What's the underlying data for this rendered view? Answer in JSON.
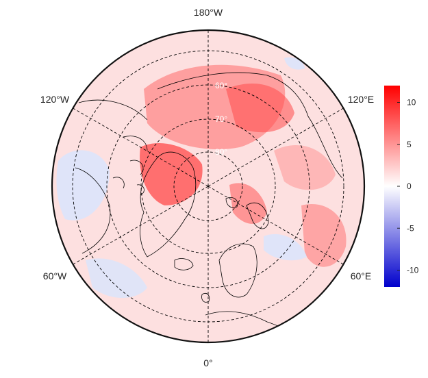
{
  "map": {
    "projection": "north-polar-stereographic",
    "longitude_labels": [
      {
        "key": "top",
        "text": "180°W"
      },
      {
        "key": "upper-left",
        "text": "120°W"
      },
      {
        "key": "upper-right",
        "text": "120°E"
      },
      {
        "key": "lower-left",
        "text": "60°W"
      },
      {
        "key": "lower-right",
        "text": "60°E"
      },
      {
        "key": "bottom",
        "text": "0°"
      }
    ],
    "latitude_labels": [
      {
        "key": "lat60",
        "text": "60°"
      },
      {
        "key": "lat70",
        "text": "70°"
      },
      {
        "key": "lat80",
        "text": "80°"
      }
    ],
    "colorbar": {
      "min": -12,
      "max": 12,
      "ticks": [
        "10",
        "5",
        "0",
        "-5",
        "-10"
      ],
      "tick_values": [
        10,
        5,
        0,
        -5,
        -10
      ],
      "low_color": "#0000cc",
      "mid_color": "#ffffff",
      "high_color": "#ff0000"
    },
    "colors": {
      "background_fill": "#fde0e0",
      "warm_anomaly": "#ff6a6a",
      "strong_warm_anomaly": "#ff4a4a",
      "cool_anomaly": "#dde4fa",
      "coastline": "#000000",
      "graticule": "#000000"
    }
  }
}
